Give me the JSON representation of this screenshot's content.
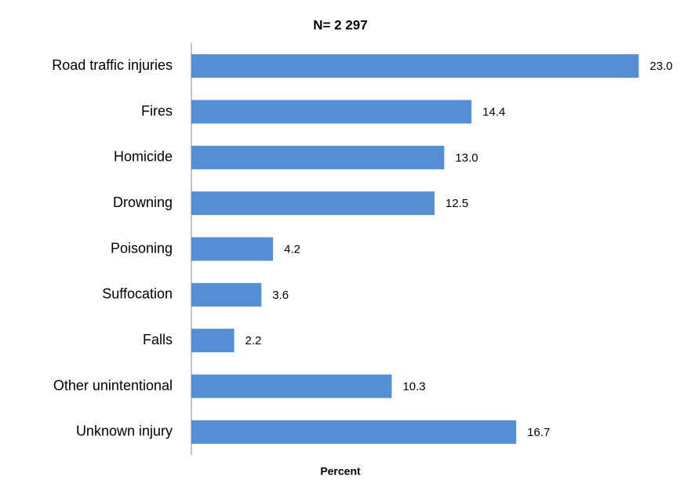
{
  "chart_data": {
    "type": "bar",
    "orientation": "horizontal",
    "title": "N= 2 297",
    "x_label": "Percent",
    "categories": [
      "Road traffic injuries",
      "Fires",
      "Homicide",
      "Drowning",
      "Poisoning",
      "Suffocation",
      "Falls",
      "Other unintentional",
      "Unknown injury"
    ],
    "values": [
      23.0,
      14.4,
      13.0,
      12.5,
      4.2,
      3.6,
      2.2,
      10.3,
      16.7
    ],
    "value_labels": [
      "23.0",
      "14.4",
      "13.0",
      "12.5",
      "4.2",
      "3.6",
      "2.2",
      "10.3",
      "16.7"
    ],
    "color": "#558ed5",
    "xlim": [
      0,
      25
    ]
  }
}
